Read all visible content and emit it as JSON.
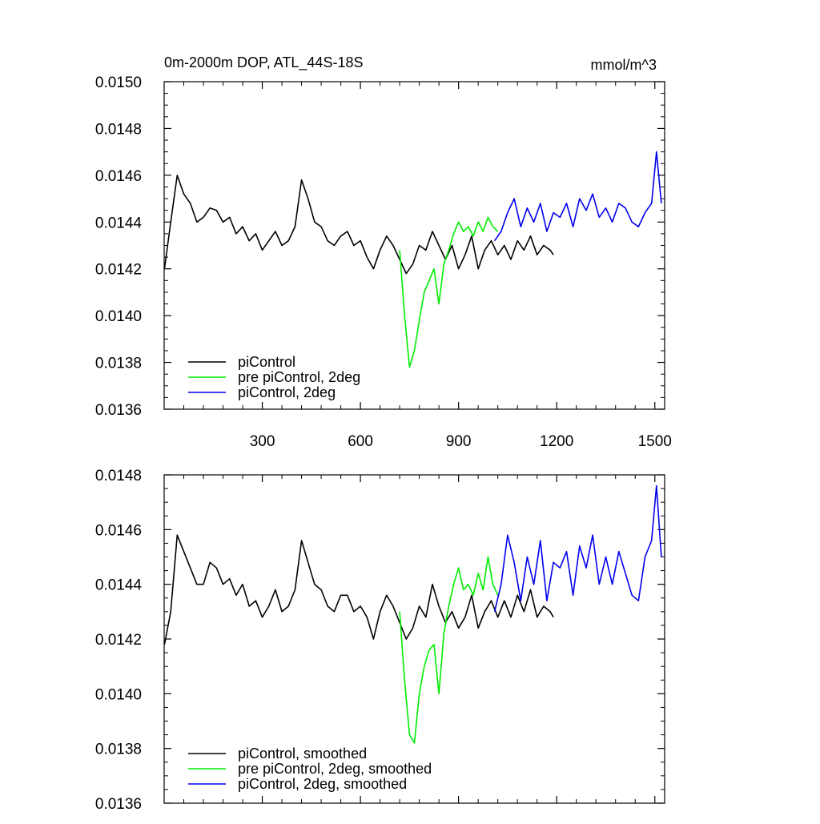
{
  "chart_data": [
    {
      "type": "line",
      "title": "0m-2000m DOP, ATL_44S-18S",
      "units": "mmol/m^3",
      "xlim": [
        0,
        1530
      ],
      "ylim": [
        0.0136,
        0.015
      ],
      "xticks": [
        300,
        600,
        900,
        1200,
        1500
      ],
      "xtick_labels": [
        "300",
        "600",
        "900",
        "1200",
        "1500"
      ],
      "yticks": [
        0.0136,
        0.0138,
        0.014,
        0.0142,
        0.0144,
        0.0146,
        0.0148,
        0.015
      ],
      "ytick_labels": [
        "0.0136",
        "0.0138",
        "0.0140",
        "0.0142",
        "0.0144",
        "0.0146",
        "0.0148",
        "0.0150"
      ],
      "grid": false,
      "legend_position": "bottom-left",
      "series": [
        {
          "name": "piControl",
          "color": "#000000",
          "x": [
            1,
            20,
            40,
            60,
            80,
            100,
            120,
            140,
            160,
            180,
            200,
            220,
            240,
            260,
            280,
            300,
            320,
            340,
            360,
            380,
            400,
            420,
            440,
            460,
            480,
            500,
            520,
            540,
            560,
            580,
            600,
            620,
            640,
            660,
            680,
            700,
            720,
            740,
            760,
            780,
            800,
            820,
            840,
            860,
            880,
            900,
            920,
            940,
            960,
            980,
            1000,
            1020,
            1040,
            1060,
            1080,
            1100,
            1120,
            1140,
            1160,
            1180,
            1190
          ],
          "values": [
            0.0142,
            0.0144,
            0.0146,
            0.01452,
            0.01448,
            0.0144,
            0.01442,
            0.01446,
            0.01445,
            0.0144,
            0.01442,
            0.01435,
            0.01438,
            0.01432,
            0.01435,
            0.01428,
            0.01432,
            0.01436,
            0.0143,
            0.01432,
            0.01438,
            0.01458,
            0.0145,
            0.0144,
            0.01438,
            0.01432,
            0.0143,
            0.01434,
            0.01436,
            0.0143,
            0.01432,
            0.01425,
            0.0142,
            0.01428,
            0.01434,
            0.0143,
            0.01424,
            0.01418,
            0.01422,
            0.0143,
            0.01428,
            0.01436,
            0.0143,
            0.01424,
            0.0143,
            0.0142,
            0.01426,
            0.01434,
            0.0142,
            0.01428,
            0.01432,
            0.01426,
            0.0143,
            0.01424,
            0.01432,
            0.01428,
            0.01434,
            0.01426,
            0.0143,
            0.01428,
            0.01426
          ]
        },
        {
          "name": "pre piControl, 2deg",
          "color": "#00ee00",
          "x": [
            720,
            735,
            750,
            765,
            780,
            795,
            810,
            825,
            840,
            855,
            870,
            885,
            900,
            915,
            930,
            945,
            960,
            975,
            990,
            1005,
            1020
          ],
          "values": [
            0.01428,
            0.014,
            0.01378,
            0.01385,
            0.01398,
            0.0141,
            0.01415,
            0.0142,
            0.01405,
            0.01422,
            0.01428,
            0.01435,
            0.0144,
            0.01436,
            0.01438,
            0.01434,
            0.0144,
            0.01436,
            0.01442,
            0.01438,
            0.01436
          ]
        },
        {
          "name": "piControl, 2deg",
          "color": "#0000ee",
          "x": [
            1010,
            1030,
            1050,
            1070,
            1090,
            1110,
            1130,
            1150,
            1170,
            1190,
            1210,
            1230,
            1250,
            1270,
            1290,
            1310,
            1330,
            1350,
            1370,
            1390,
            1410,
            1430,
            1450,
            1470,
            1490,
            1505,
            1520
          ],
          "values": [
            0.01432,
            0.01436,
            0.01444,
            0.0145,
            0.01438,
            0.01446,
            0.0144,
            0.01448,
            0.01436,
            0.01444,
            0.01442,
            0.01448,
            0.01438,
            0.0145,
            0.01445,
            0.01452,
            0.01442,
            0.01446,
            0.0144,
            0.01448,
            0.01446,
            0.0144,
            0.01438,
            0.01444,
            0.01448,
            0.0147,
            0.01448
          ]
        }
      ]
    },
    {
      "type": "line",
      "xlim": [
        0,
        1530
      ],
      "ylim": [
        0.0136,
        0.0148
      ],
      "xticks": [
        300,
        600,
        900,
        1200,
        1500
      ],
      "yticks": [
        0.0136,
        0.0138,
        0.014,
        0.0142,
        0.0144,
        0.0146,
        0.0148
      ],
      "ytick_labels": [
        "0.0136",
        "0.0138",
        "0.0140",
        "0.0142",
        "0.0144",
        "0.0146",
        "0.0148"
      ],
      "grid": false,
      "legend_position": "bottom-left",
      "series": [
        {
          "name": "piControl, smoothed",
          "color": "#000000",
          "x": [
            1,
            20,
            40,
            60,
            80,
            100,
            120,
            140,
            160,
            180,
            200,
            220,
            240,
            260,
            280,
            300,
            320,
            340,
            360,
            380,
            400,
            420,
            440,
            460,
            480,
            500,
            520,
            540,
            560,
            580,
            600,
            620,
            640,
            660,
            680,
            700,
            720,
            740,
            760,
            780,
            800,
            820,
            840,
            860,
            880,
            900,
            920,
            940,
            960,
            980,
            1000,
            1020,
            1040,
            1060,
            1080,
            1100,
            1120,
            1140,
            1160,
            1180,
            1190
          ],
          "values": [
            0.01418,
            0.0143,
            0.01458,
            0.01452,
            0.01446,
            0.0144,
            0.0144,
            0.01448,
            0.01446,
            0.0144,
            0.01442,
            0.01436,
            0.0144,
            0.01432,
            0.01434,
            0.01428,
            0.01432,
            0.01438,
            0.0143,
            0.01432,
            0.01438,
            0.01456,
            0.01448,
            0.0144,
            0.01438,
            0.01432,
            0.0143,
            0.01436,
            0.01436,
            0.0143,
            0.01432,
            0.01428,
            0.0142,
            0.0143,
            0.01436,
            0.01432,
            0.01426,
            0.0142,
            0.01424,
            0.01432,
            0.01428,
            0.0144,
            0.01432,
            0.01426,
            0.0143,
            0.01424,
            0.01428,
            0.01436,
            0.01424,
            0.0143,
            0.01434,
            0.01428,
            0.01434,
            0.01428,
            0.01436,
            0.0143,
            0.01438,
            0.01428,
            0.01432,
            0.0143,
            0.01428
          ]
        },
        {
          "name": "pre piControl, 2deg, smoothed",
          "color": "#00ee00",
          "x": [
            720,
            735,
            750,
            765,
            780,
            795,
            810,
            825,
            840,
            855,
            870,
            885,
            900,
            915,
            930,
            945,
            960,
            975,
            990,
            1005,
            1020
          ],
          "values": [
            0.0143,
            0.01405,
            0.01385,
            0.01382,
            0.014,
            0.0141,
            0.01416,
            0.01418,
            0.014,
            0.01422,
            0.01432,
            0.0144,
            0.01446,
            0.01438,
            0.0144,
            0.01436,
            0.01444,
            0.01438,
            0.0145,
            0.0144,
            0.01436
          ]
        },
        {
          "name": "piControl, 2deg, smoothed",
          "color": "#0000ee",
          "x": [
            1010,
            1030,
            1050,
            1070,
            1090,
            1110,
            1130,
            1150,
            1170,
            1190,
            1210,
            1230,
            1250,
            1270,
            1290,
            1310,
            1330,
            1350,
            1370,
            1390,
            1410,
            1430,
            1450,
            1470,
            1490,
            1505,
            1520
          ],
          "values": [
            0.0143,
            0.0144,
            0.01458,
            0.01448,
            0.01434,
            0.0145,
            0.0144,
            0.01456,
            0.01434,
            0.01448,
            0.01446,
            0.01452,
            0.01436,
            0.01454,
            0.01446,
            0.01458,
            0.0144,
            0.0145,
            0.0144,
            0.01452,
            0.01444,
            0.01436,
            0.01434,
            0.0145,
            0.01456,
            0.01476,
            0.0145
          ]
        }
      ]
    }
  ]
}
